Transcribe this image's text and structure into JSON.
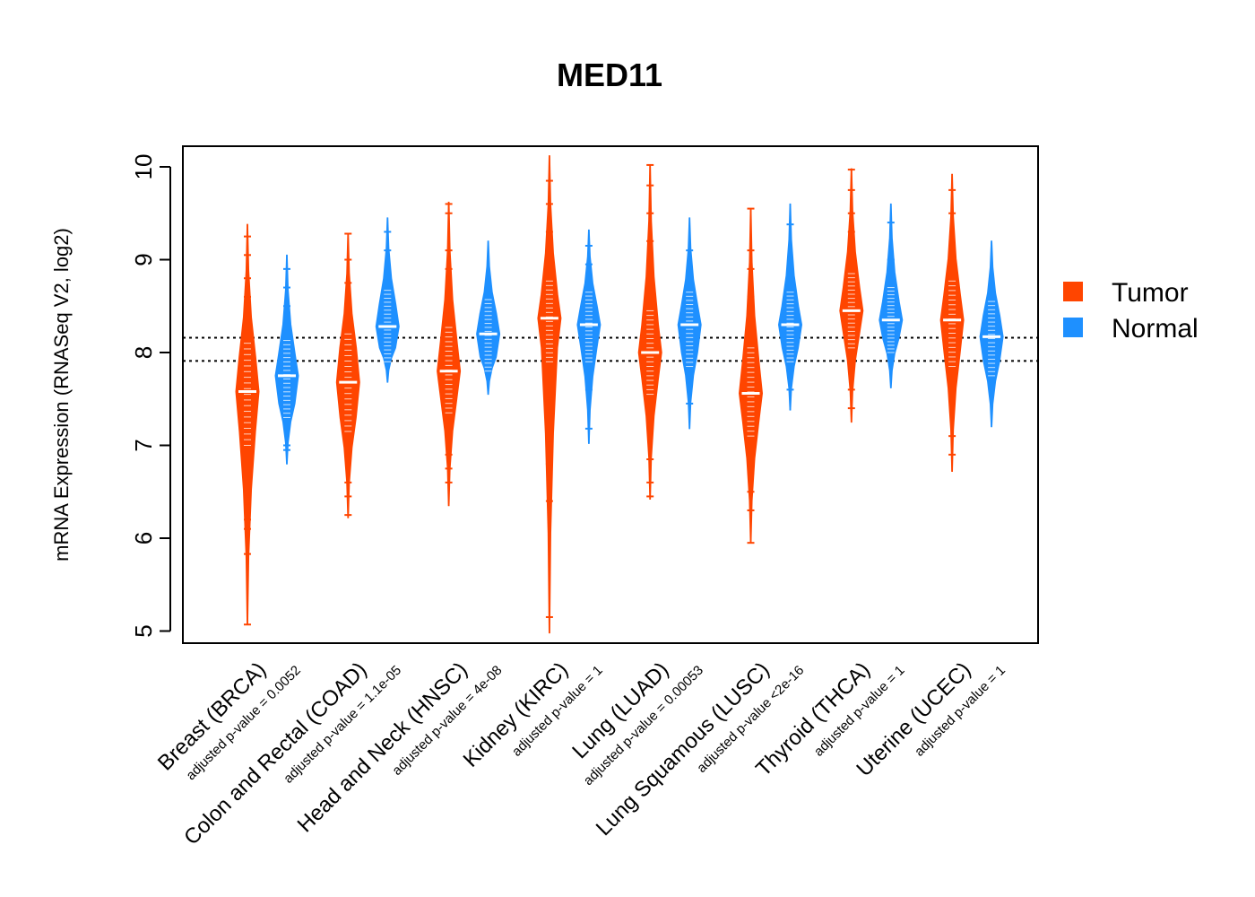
{
  "chart_data": {
    "type": "beanplot",
    "title": "MED11",
    "ylabel": "mRNA Expression (RNASeq V2, log2)",
    "xlabel": "",
    "ylim": [
      4.9,
      10.3
    ],
    "yticks": [
      5,
      6,
      7,
      8,
      9,
      10
    ],
    "reference_lines": [
      7.91,
      8.16
    ],
    "legend": {
      "position": "right",
      "entries": [
        {
          "name": "Tumor",
          "color": "#FF4500"
        },
        {
          "name": "Normal",
          "color": "#1E90FF"
        }
      ]
    },
    "categories": [
      {
        "label": "Breast (BRCA)",
        "pvalue": "adjusted p-value = 0.0052",
        "tumor": {
          "min": 5.07,
          "max": 9.38,
          "q1": 7.15,
          "median": 7.58,
          "q3": 7.95,
          "outliers": [
            5.07,
            5.83,
            6.1,
            6.2,
            6.35,
            6.45,
            8.6,
            8.8,
            9.05,
            9.25
          ]
        },
        "normal": {
          "min": 6.8,
          "max": 9.05,
          "q1": 7.45,
          "median": 7.75,
          "q3": 7.98,
          "outliers": [
            6.95,
            7.0,
            8.5,
            8.7,
            8.9
          ]
        }
      },
      {
        "label": "Colon and Rectal (COAD)",
        "pvalue": "adjusted p-value = 1.1e-05",
        "tumor": {
          "min": 6.22,
          "max": 9.28,
          "q1": 7.3,
          "median": 7.68,
          "q3": 8.05,
          "outliers": [
            6.25,
            6.45,
            6.6,
            8.75,
            9.0,
            9.28
          ]
        },
        "normal": {
          "min": 7.68,
          "max": 9.45,
          "q1": 8.05,
          "median": 8.28,
          "q3": 8.52,
          "outliers": [
            9.1,
            9.3
          ]
        }
      },
      {
        "label": "Head and Neck (HNSC)",
        "pvalue": "adjusted p-value = 4e-08",
        "tumor": {
          "min": 6.35,
          "max": 9.62,
          "q1": 7.5,
          "median": 7.8,
          "q3": 8.12,
          "outliers": [
            6.6,
            6.75,
            6.9,
            8.9,
            9.1,
            9.5,
            9.6
          ]
        },
        "normal": {
          "min": 7.55,
          "max": 9.2,
          "q1": 7.95,
          "median": 8.2,
          "q3": 8.42,
          "outliers": []
        }
      },
      {
        "label": "Kidney (KIRC)",
        "pvalue": "adjusted p-value = 1",
        "tumor": {
          "min": 4.98,
          "max": 10.12,
          "q1": 8.05,
          "median": 8.37,
          "q3": 8.62,
          "outliers": [
            5.15,
            6.4,
            6.8,
            7.05,
            7.5,
            9.3,
            9.6,
            9.85
          ]
        },
        "normal": {
          "min": 7.02,
          "max": 9.32,
          "q1": 8.05,
          "median": 8.3,
          "q3": 8.5,
          "outliers": [
            7.18,
            7.6,
            8.95,
            9.15
          ]
        }
      },
      {
        "label": "Lung (LUAD)",
        "pvalue": "adjusted p-value = 0.00053",
        "tumor": {
          "min": 6.42,
          "max": 10.02,
          "q1": 7.7,
          "median": 8.0,
          "q3": 8.3,
          "outliers": [
            6.45,
            6.6,
            6.85,
            9.2,
            9.5,
            9.8,
            10.02
          ]
        },
        "normal": {
          "min": 7.18,
          "max": 9.45,
          "q1": 8.0,
          "median": 8.3,
          "q3": 8.5,
          "outliers": [
            7.45,
            9.1
          ]
        }
      },
      {
        "label": "Lung Squamous (LUSC)",
        "pvalue": "adjusted p-value <2e-16",
        "tumor": {
          "min": 5.95,
          "max": 9.55,
          "q1": 7.25,
          "median": 7.56,
          "q3": 7.9,
          "outliers": [
            5.95,
            6.3,
            6.5,
            6.7,
            8.6,
            8.9,
            9.1,
            9.55
          ]
        },
        "normal": {
          "min": 7.38,
          "max": 9.6,
          "q1": 8.05,
          "median": 8.3,
          "q3": 8.5,
          "outliers": [
            7.6,
            9.38
          ]
        }
      },
      {
        "label": "Thyroid (THCA)",
        "pvalue": "adjusted p-value = 1",
        "tumor": {
          "min": 7.25,
          "max": 9.98,
          "q1": 8.2,
          "median": 8.45,
          "q3": 8.7,
          "outliers": [
            7.4,
            7.6,
            9.3,
            9.5,
            9.75,
            9.97
          ]
        },
        "normal": {
          "min": 7.62,
          "max": 9.6,
          "q1": 8.15,
          "median": 8.35,
          "q3": 8.55,
          "outliers": [
            9.0,
            9.4
          ]
        }
      },
      {
        "label": "Uterine (UCEC)",
        "pvalue": "adjusted p-value = 1",
        "tumor": {
          "min": 6.72,
          "max": 9.92,
          "q1": 8.0,
          "median": 8.35,
          "q3": 8.62,
          "outliers": [
            6.9,
            7.1,
            9.5,
            9.75
          ]
        },
        "normal": {
          "min": 7.2,
          "max": 9.2,
          "q1": 7.9,
          "median": 8.17,
          "q3": 8.4,
          "outliers": []
        }
      }
    ]
  }
}
